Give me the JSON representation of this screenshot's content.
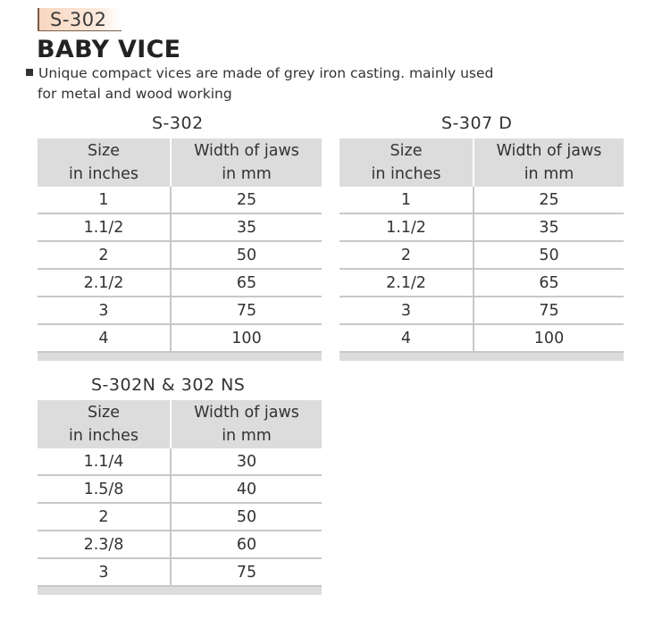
{
  "header": {
    "code": "S-302",
    "title": "BABY VICE",
    "description_line1": "Unique compact vices are made of grey iron casting. mainly used",
    "description_line2": "for metal and wood working"
  },
  "tables": [
    {
      "title": "S-302",
      "col1_line1": "Size",
      "col1_line2": "in inches",
      "col2_line1": "Width of jaws",
      "col2_line2": "in mm",
      "rows": [
        {
          "size": "1",
          "width": "25"
        },
        {
          "size": "1.1/2",
          "width": "35"
        },
        {
          "size": "2",
          "width": "50"
        },
        {
          "size": "2.1/2",
          "width": "65"
        },
        {
          "size": "3",
          "width": "75"
        },
        {
          "size": "4",
          "width": "100"
        }
      ]
    },
    {
      "title": "S-307 D",
      "col1_line1": "Size",
      "col1_line2": "in inches",
      "col2_line1": "Width of jaws",
      "col2_line2": "in mm",
      "rows": [
        {
          "size": "1",
          "width": "25"
        },
        {
          "size": "1.1/2",
          "width": "35"
        },
        {
          "size": "2",
          "width": "50"
        },
        {
          "size": "2.1/2",
          "width": "65"
        },
        {
          "size": "3",
          "width": "75"
        },
        {
          "size": "4",
          "width": "100"
        }
      ]
    },
    {
      "title": "S-302N  & 302 NS",
      "col1_line1": "Size",
      "col1_line2": "in inches",
      "col2_line1": "Width of jaws",
      "col2_line2": "in mm",
      "rows": [
        {
          "size": "1.1/4",
          "width": "30"
        },
        {
          "size": "1.5/8",
          "width": "40"
        },
        {
          "size": "2",
          "width": "50"
        },
        {
          "size": "2.3/8",
          "width": "60"
        },
        {
          "size": "3",
          "width": "75"
        }
      ]
    }
  ]
}
